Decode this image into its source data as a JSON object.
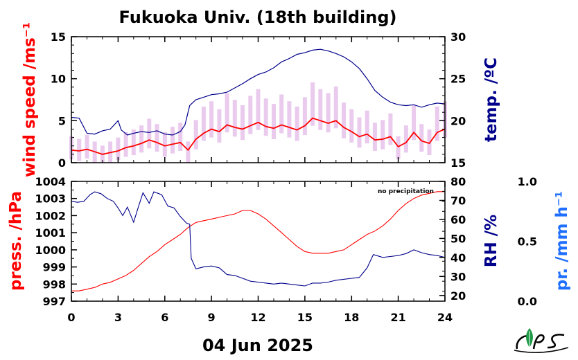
{
  "colors": {
    "wind": "#ff0000",
    "wind_raw": "#d9a0e0",
    "temperature": "#00008b",
    "pressure": "#ff0000",
    "humidity": "#00008b",
    "precip_axis": "#1e6eff",
    "frame": "#000000"
  },
  "footer": {
    "date": "04 Jun 2025",
    "logo_icon": "ies-leaf-logo-icon"
  },
  "chart_data": [
    {
      "type": "line",
      "title": "Fukuoka Univ. (18th building)",
      "ylabel": "wind speed /ms⁻¹",
      "y2label": "temp. /ºC",
      "xlim": [
        0,
        24
      ],
      "ylim": [
        0,
        15
      ],
      "y2lim": [
        15,
        30
      ],
      "xticks": [
        "0",
        "3",
        "6",
        "9",
        "12",
        "15",
        "18",
        "21",
        "24"
      ],
      "yticks": [
        "0",
        "5",
        "10",
        "15"
      ],
      "y2ticks": [
        "15",
        "20",
        "25",
        "30"
      ],
      "series": [
        {
          "axis": "left",
          "style": "raw",
          "x": [
            0,
            0.5,
            1,
            1.5,
            2,
            2.5,
            3,
            3.5,
            4,
            4.5,
            5,
            5.5,
            6,
            6.5,
            7,
            7.5,
            8,
            8.5,
            9,
            9.5,
            10,
            10.5,
            11,
            11.5,
            12,
            12.5,
            13,
            13.5,
            14,
            14.5,
            15,
            15.5,
            16,
            16.5,
            17,
            17.5,
            18,
            18.5,
            19,
            19.5,
            20,
            20.5,
            21,
            21.5,
            22,
            22.5,
            23,
            23.5,
            24
          ],
          "values": [
            1.6,
            1.4,
            1.7,
            1.2,
            0.9,
            1.2,
            1.5,
            1.9,
            2.1,
            2.4,
            2.9,
            2.5,
            1.9,
            2.3,
            2.6,
            1.2,
            2.8,
            3.8,
            4.2,
            3.6,
            4.8,
            4.3,
            3.9,
            4.6,
            5.1,
            4.4,
            4.0,
            4.7,
            4.2,
            3.8,
            4.5,
            5.6,
            5.1,
            4.8,
            5.3,
            4.1,
            3.6,
            3.0,
            3.5,
            2.6,
            2.8,
            3.3,
            1.6,
            2.4,
            3.9,
            2.5,
            2.1,
            3.8,
            4.2
          ]
        },
        {
          "axis": "left",
          "style": "smoothed",
          "x": [
            0,
            0.5,
            1,
            1.5,
            2,
            2.5,
            3,
            3.5,
            4,
            4.5,
            5,
            5.5,
            6,
            6.5,
            7,
            7.5,
            8,
            8.5,
            9,
            9.5,
            10,
            10.5,
            11,
            11.5,
            12,
            12.5,
            13,
            13.5,
            14,
            14.5,
            15,
            15.5,
            16,
            16.5,
            17,
            17.5,
            18,
            18.5,
            19,
            19.5,
            20,
            20.5,
            21,
            21.5,
            22,
            22.5,
            23,
            23.5,
            24
          ],
          "values": [
            1.5,
            1.4,
            1.6,
            1.3,
            1.0,
            1.2,
            1.4,
            1.8,
            2.0,
            2.3,
            2.7,
            2.4,
            2.0,
            2.2,
            2.4,
            1.5,
            2.8,
            3.5,
            4.0,
            3.7,
            4.5,
            4.2,
            4.0,
            4.4,
            4.8,
            4.3,
            4.1,
            4.5,
            4.2,
            3.9,
            4.4,
            5.3,
            5.0,
            4.7,
            5.0,
            4.2,
            3.7,
            3.1,
            3.4,
            2.7,
            2.8,
            3.1,
            1.9,
            2.4,
            3.6,
            2.6,
            2.3,
            3.6,
            4.0
          ]
        },
        {
          "axis": "right",
          "style": "temperature",
          "x": [
            0,
            0.5,
            1,
            1.5,
            2,
            2.5,
            3,
            3.2,
            3.6,
            4,
            4.5,
            5,
            5.5,
            6,
            6.5,
            7,
            7.3,
            7.6,
            8,
            8.5,
            9,
            9.5,
            10,
            10.5,
            11,
            11.5,
            12,
            12.5,
            13,
            13.5,
            14,
            14.5,
            15,
            15.5,
            16,
            16.5,
            17,
            17.5,
            18,
            18.5,
            19,
            19.5,
            20,
            20.5,
            21,
            21.5,
            22,
            22.5,
            23,
            23.5,
            24
          ],
          "values": [
            20.4,
            20.3,
            18.5,
            18.4,
            18.8,
            19.0,
            20.0,
            18.9,
            18.3,
            18.5,
            18.7,
            18.6,
            18.8,
            18.4,
            18.3,
            18.7,
            19.5,
            21.8,
            22.5,
            22.8,
            23.1,
            23.2,
            23.4,
            23.9,
            24.4,
            25.0,
            25.5,
            25.8,
            26.3,
            27.0,
            27.4,
            27.9,
            28.1,
            28.4,
            28.5,
            28.3,
            28.0,
            27.6,
            27.0,
            26.2,
            25.0,
            23.6,
            22.8,
            22.2,
            21.9,
            21.8,
            21.9,
            21.6,
            21.9,
            22.1,
            22.0
          ]
        }
      ]
    },
    {
      "type": "line",
      "ylabel": "press. /hPa",
      "y2label": "RH /%",
      "y3label": "pr. /mm h⁻¹",
      "annotation": "no precipitation",
      "xlabel": "04 Jun 2025",
      "xlim": [
        0,
        24
      ],
      "ylim": [
        997,
        1004
      ],
      "y2lim": [
        17,
        80
      ],
      "y3lim": [
        0,
        1
      ],
      "xticks": [
        "0",
        "3",
        "6",
        "9",
        "12",
        "15",
        "18",
        "21",
        "24"
      ],
      "yticks": [
        "997",
        "998",
        "999",
        "1000",
        "1001",
        "1002",
        "1003",
        "1004"
      ],
      "y2ticks": [
        "20",
        "30",
        "40",
        "50",
        "60",
        "70",
        "80"
      ],
      "y3ticks": [
        "0.0",
        "0.5",
        "1.0"
      ],
      "series": [
        {
          "axis": "left",
          "style": "pressure",
          "x": [
            0,
            0.5,
            1,
            1.5,
            2,
            2.5,
            3,
            3.5,
            4,
            4.5,
            5,
            5.5,
            6,
            6.5,
            7,
            7.5,
            8,
            8.5,
            9,
            9.5,
            10,
            10.5,
            11,
            11.5,
            12,
            12.5,
            13,
            13.5,
            14,
            14.5,
            15,
            15.5,
            16,
            16.5,
            17,
            17.5,
            18,
            18.5,
            19,
            19.5,
            20,
            20.5,
            21,
            21.5,
            22,
            22.5,
            23,
            23.5,
            24
          ],
          "values": [
            997.6,
            997.6,
            997.7,
            997.8,
            998.0,
            998.1,
            998.3,
            998.5,
            998.8,
            999.2,
            999.6,
            999.9,
            1000.3,
            1000.6,
            1000.9,
            1001.3,
            1001.6,
            1001.7,
            1001.8,
            1001.9,
            1002.0,
            1002.1,
            1002.3,
            1002.3,
            1002.1,
            1001.8,
            1001.4,
            1001.0,
            1000.6,
            1000.2,
            999.9,
            999.8,
            999.8,
            999.8,
            999.9,
            1000.0,
            1000.3,
            1000.6,
            1000.9,
            1001.1,
            1001.4,
            1001.8,
            1002.3,
            1002.7,
            1003.0,
            1003.2,
            1003.3,
            1003.4,
            1003.4
          ]
        },
        {
          "axis": "right",
          "style": "humidity",
          "x": [
            0,
            0.4,
            0.8,
            1.2,
            1.5,
            1.9,
            2.3,
            2.7,
            3.0,
            3.3,
            3.6,
            4.0,
            4.3,
            4.6,
            5.0,
            5.3,
            5.8,
            6.2,
            6.6,
            7.0,
            7.4,
            7.6,
            7.7,
            8.0,
            8.5,
            9.0,
            9.5,
            10.0,
            10.5,
            11.0,
            11.5,
            12.0,
            12.5,
            13.0,
            13.5,
            14.0,
            14.5,
            15.0,
            15.5,
            16.0,
            16.5,
            17.0,
            17.5,
            18.0,
            18.5,
            19.0,
            19.4,
            20.0,
            20.5,
            21.0,
            21.5,
            22.0,
            22.5,
            23.0,
            23.5,
            24.0
          ],
          "values": [
            69.5,
            69.0,
            69.5,
            73.0,
            74.5,
            73.5,
            71.0,
            69.5,
            66.0,
            62.0,
            66.5,
            58.5,
            66.5,
            74.0,
            68.5,
            74.5,
            73.0,
            67.0,
            66.0,
            61.5,
            58.0,
            57.5,
            39.5,
            34.0,
            35.0,
            35.5,
            34.5,
            31.0,
            30.5,
            29.0,
            27.5,
            27.0,
            26.5,
            26.0,
            26.5,
            26.0,
            25.5,
            25.0,
            26.5,
            26.5,
            27.0,
            28.0,
            28.5,
            29.0,
            29.5,
            34.5,
            41.5,
            40.0,
            40.5,
            41.0,
            42.0,
            44.0,
            42.5,
            41.5,
            41.0,
            40.0
          ]
        }
      ]
    }
  ]
}
